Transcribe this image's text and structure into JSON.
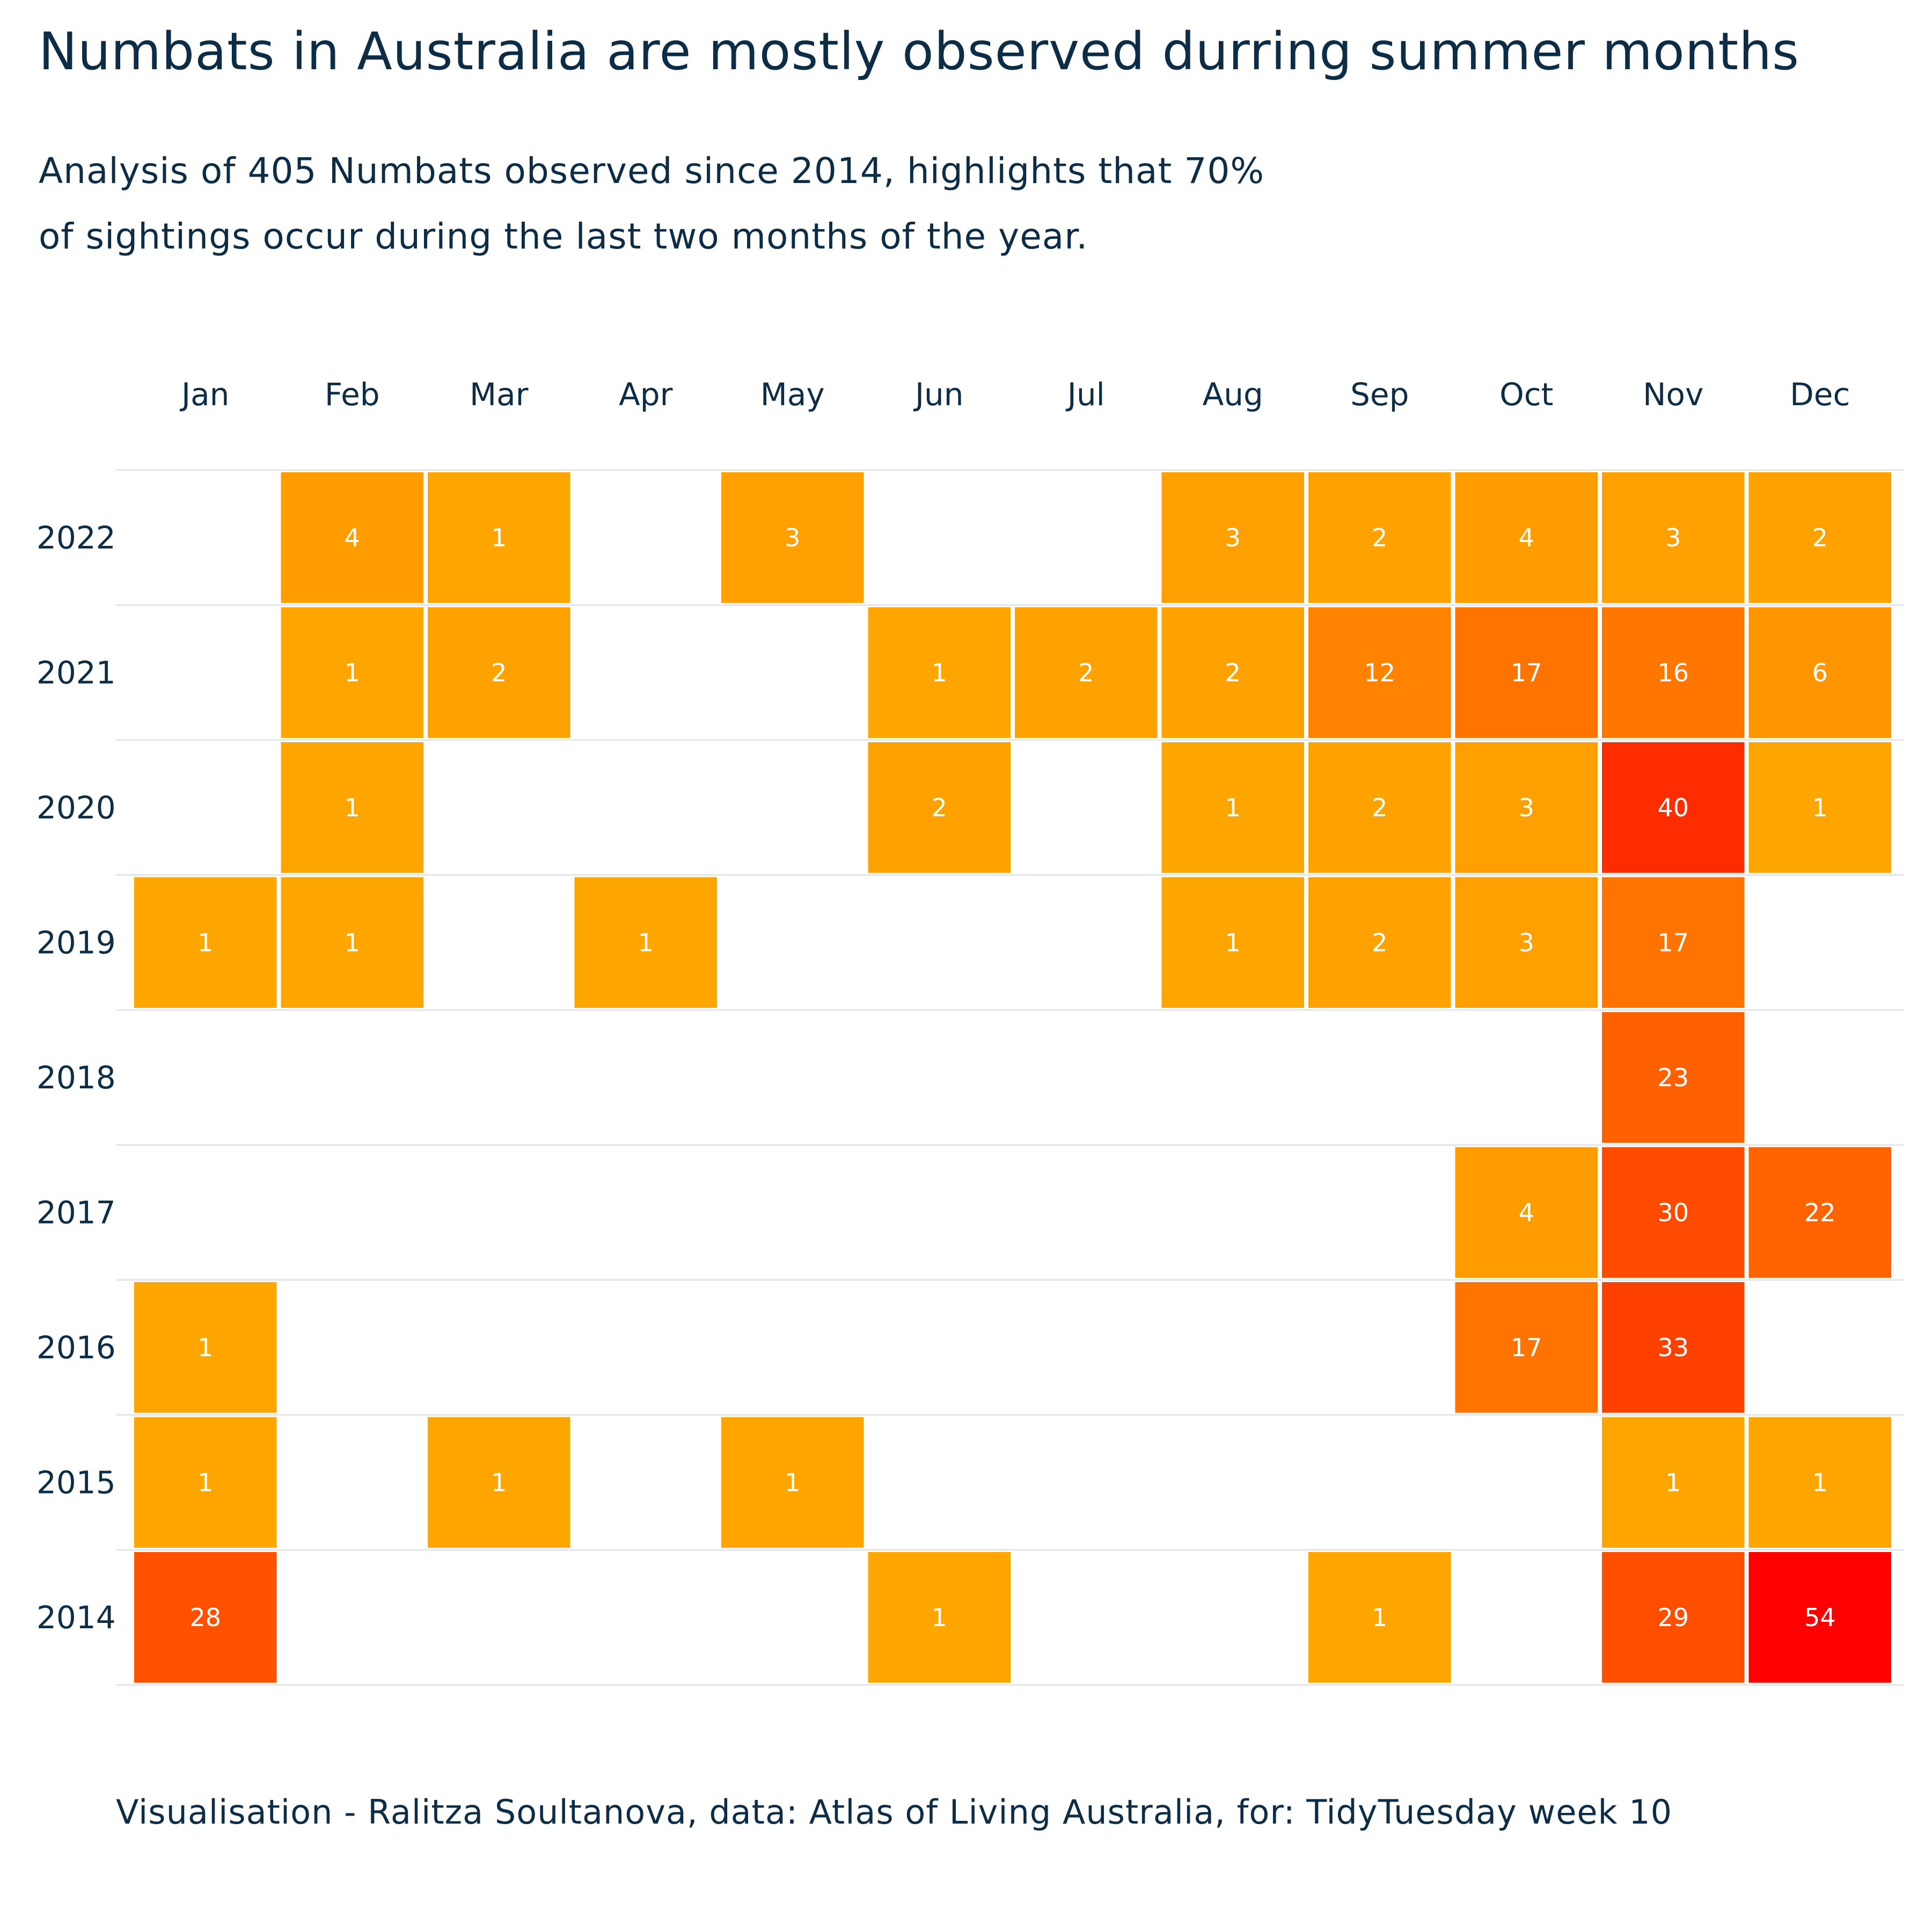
{
  "title": "Numbats in Australia are mostly observed durring summer months",
  "subtitle": {
    "line1": "Analysis of 405 Numbats observed since 2014, highlights that 70%",
    "line2": "of sightings occur during the last two months of the year."
  },
  "caption": "Visualisation - Ralitza Soultanova, data: Atlas of Living Australia, for: TidyTuesday week 10",
  "colors": {
    "text": "#0d2c45",
    "gridline": "#e6e6e6",
    "low": "#ffa500",
    "high": "#ff0000",
    "cell_label": "#ffffff"
  },
  "chart_data": {
    "type": "heatmap",
    "title": "Numbats in Australia are mostly observed durring summer months",
    "x_categories": [
      "Jan",
      "Feb",
      "Mar",
      "Apr",
      "May",
      "Jun",
      "Jul",
      "Aug",
      "Sep",
      "Oct",
      "Nov",
      "Dec"
    ],
    "y_categories": [
      "2022",
      "2021",
      "2020",
      "2019",
      "2018",
      "2017",
      "2016",
      "2015",
      "2014"
    ],
    "x_axis_position": "top",
    "legend": "none",
    "grid": true,
    "values": [
      [
        null,
        4,
        1,
        null,
        3,
        null,
        null,
        3,
        2,
        4,
        3,
        2
      ],
      [
        null,
        1,
        2,
        null,
        null,
        1,
        2,
        2,
        12,
        17,
        16,
        6
      ],
      [
        null,
        1,
        null,
        null,
        null,
        2,
        null,
        1,
        2,
        3,
        40,
        1
      ],
      [
        1,
        1,
        null,
        1,
        null,
        null,
        null,
        1,
        2,
        3,
        17,
        null
      ],
      [
        null,
        null,
        null,
        null,
        null,
        null,
        null,
        null,
        null,
        null,
        23,
        null
      ],
      [
        null,
        null,
        null,
        null,
        null,
        null,
        null,
        null,
        null,
        4,
        30,
        22
      ],
      [
        1,
        null,
        null,
        null,
        null,
        null,
        null,
        null,
        null,
        17,
        33,
        null
      ],
      [
        1,
        null,
        1,
        null,
        1,
        null,
        null,
        null,
        null,
        null,
        1,
        1
      ],
      [
        28,
        null,
        null,
        null,
        null,
        1,
        null,
        null,
        1,
        null,
        29,
        54
      ]
    ],
    "color_scale": {
      "min": 1,
      "max": 54
    }
  }
}
